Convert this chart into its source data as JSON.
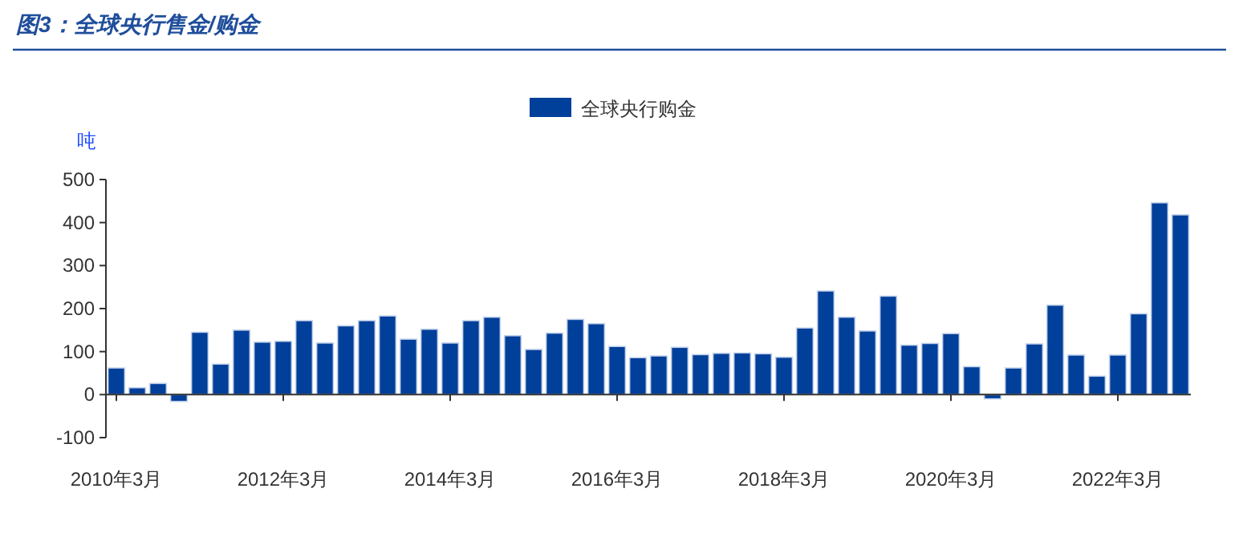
{
  "chart_data": {
    "type": "bar",
    "title": "图3：全球央行售金/购金",
    "ylabel": "吨",
    "categories": [
      "2010年3月",
      null,
      null,
      null,
      null,
      null,
      null,
      null,
      "2012年3月",
      null,
      null,
      null,
      null,
      null,
      null,
      null,
      "2014年3月",
      null,
      null,
      null,
      null,
      null,
      null,
      null,
      "2016年3月",
      null,
      null,
      null,
      null,
      null,
      null,
      null,
      "2018年3月",
      null,
      null,
      null,
      null,
      null,
      null,
      null,
      "2020年3月",
      null,
      null,
      null,
      null,
      null,
      null,
      null,
      "2022年3月",
      null,
      null,
      null
    ],
    "series": [
      {
        "name": "全球央行购金",
        "color": "#003f9a",
        "values": [
          62,
          16,
          26,
          -16,
          145,
          71,
          150,
          122,
          124,
          172,
          120,
          160,
          172,
          183,
          129,
          152,
          120,
          172,
          180,
          137,
          105,
          143,
          175,
          165,
          112,
          86,
          90,
          110,
          93,
          96,
          97,
          95,
          87,
          155,
          241,
          180,
          148,
          229,
          115,
          119,
          142,
          65,
          -10,
          62,
          118,
          208,
          92,
          43,
          92,
          188,
          446,
          418
        ]
      }
    ],
    "ylim": [
      -100,
      500
    ],
    "yticks": [
      -100,
      0,
      100,
      200,
      300,
      400,
      500
    ],
    "legend": "top"
  }
}
